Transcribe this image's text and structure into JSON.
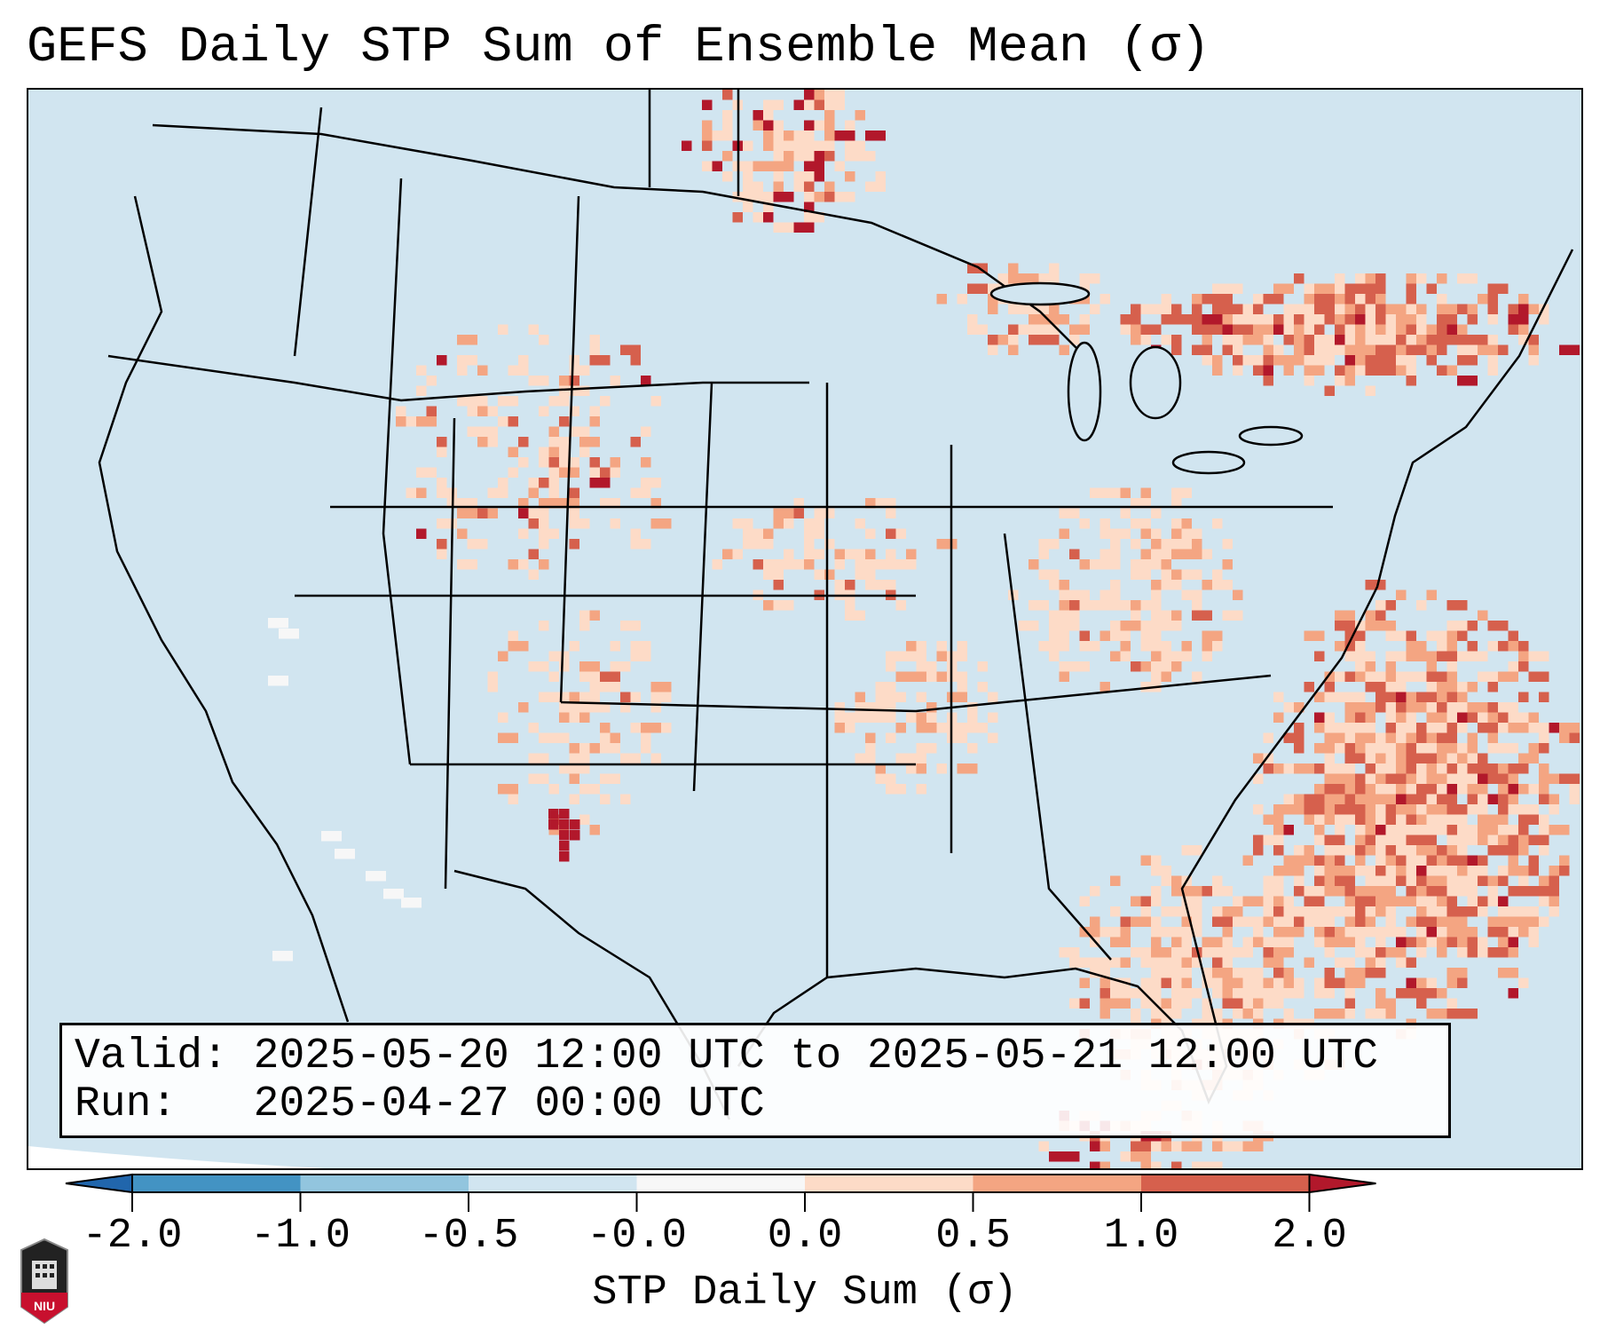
{
  "title": "GEFS Daily STP Sum of Ensemble Mean (σ)",
  "info": {
    "valid": "Valid: 2025-05-20 12:00 UTC to 2025-05-21 12:00 UTC",
    "run": "Run:   2025-04-27 00:00 UTC"
  },
  "chart_data": {
    "type": "heatmap",
    "title": "GEFS Daily STP Sum of Ensemble Mean (σ)",
    "colorbar": {
      "label": "STP Daily Sum (σ)",
      "ticks": [
        "-2.0",
        "-1.0",
        "-0.5",
        "-0.0",
        "0.0",
        "0.5",
        "1.0",
        "2.0"
      ],
      "bounds": [
        -2.0,
        -1.0,
        -0.5,
        -0.0,
        0.0,
        0.5,
        1.0,
        2.0
      ],
      "colors": [
        "#4393c3",
        "#92c5de",
        "#d1e5f0",
        "#f7f7f7",
        "#fddbc7",
        "#f4a582",
        "#d6604d"
      ],
      "extend_low_color": "#2166ac",
      "extend_high_color": "#b2182b"
    },
    "regions_highlighted": "positive anomalies over Southeast US coast/Atlantic, southern Canada/Northeast, central Plains; maxima in southeast New Mexico and Quebec"
  },
  "logo": {
    "text": "NIU"
  }
}
